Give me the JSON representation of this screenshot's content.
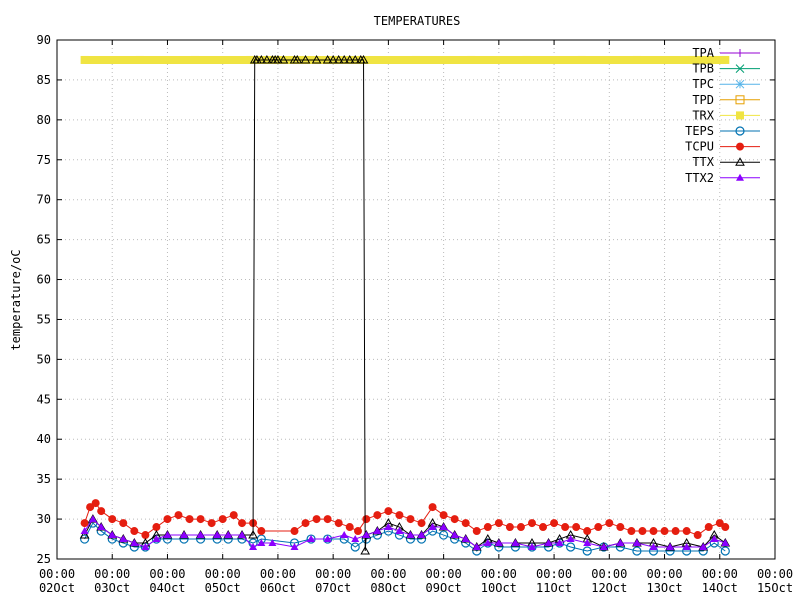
{
  "chart_data": {
    "type": "line",
    "title": "TEMPERATURES",
    "xlabel": "",
    "ylabel": "temperature/oC",
    "ylim": [
      25,
      90
    ],
    "yticks": [
      25,
      30,
      35,
      40,
      45,
      50,
      55,
      60,
      65,
      70,
      75,
      80,
      85,
      90
    ],
    "xlim": [
      2,
      15
    ],
    "xticks": [
      {
        "x": 2,
        "time": "00:00",
        "date": "02Oct"
      },
      {
        "x": 3,
        "time": "00:00",
        "date": "03Oct"
      },
      {
        "x": 4,
        "time": "00:00",
        "date": "04Oct"
      },
      {
        "x": 5,
        "time": "00:00",
        "date": "05Oct"
      },
      {
        "x": 6,
        "time": "00:00",
        "date": "06Oct"
      },
      {
        "x": 7,
        "time": "00:00",
        "date": "07Oct"
      },
      {
        "x": 8,
        "time": "00:00",
        "date": "08Oct"
      },
      {
        "x": 9,
        "time": "00:00",
        "date": "09Oct"
      },
      {
        "x": 10,
        "time": "00:00",
        "date": "10Oct"
      },
      {
        "x": 11,
        "time": "00:00",
        "date": "11Oct"
      },
      {
        "x": 12,
        "time": "00:00",
        "date": "12Oct"
      },
      {
        "x": 13,
        "time": "00:00",
        "date": "13Oct"
      },
      {
        "x": 14,
        "time": "00:00",
        "date": "14Oct"
      },
      {
        "x": 15,
        "time": "00:00",
        "date": "15Oct"
      }
    ],
    "grid": true,
    "legend_position": "top-right",
    "series": [
      {
        "name": "TPA",
        "color": "#9400d3",
        "marker": "plus",
        "x": [],
        "y": []
      },
      {
        "name": "TPB",
        "color": "#009e73",
        "marker": "cross",
        "x": [],
        "y": []
      },
      {
        "name": "TPC",
        "color": "#56b4e9",
        "marker": "star",
        "x": [],
        "y": []
      },
      {
        "name": "TPD",
        "color": "#e69f00",
        "marker": "square-open",
        "x": [],
        "y": []
      },
      {
        "name": "TRX",
        "color": "#f0e442",
        "marker": "square-filled",
        "x": [
          2.5,
          3.5,
          4.5,
          5.5,
          5.95,
          6.5,
          7.5,
          8.5,
          9.5,
          10.5,
          11.5,
          12.5,
          13.5,
          14.1
        ],
        "y": [
          87.5,
          87.5,
          87.5,
          87.5,
          87.5,
          87.5,
          87.5,
          87.5,
          87.5,
          87.5,
          87.5,
          87.5,
          87.5,
          87.5
        ]
      },
      {
        "name": "TEPS",
        "color": "#0072b2",
        "marker": "circle-open",
        "x": [
          2.5,
          2.65,
          2.8,
          3.0,
          3.2,
          3.4,
          3.6,
          3.8,
          4.0,
          4.3,
          4.6,
          4.9,
          5.1,
          5.35,
          5.55,
          5.7,
          6.3,
          6.6,
          6.9,
          7.2,
          7.4,
          7.6,
          7.8,
          8.0,
          8.2,
          8.4,
          8.6,
          8.8,
          9.0,
          9.2,
          9.4,
          9.6,
          9.8,
          10.0,
          10.3,
          10.6,
          10.9,
          11.1,
          11.3,
          11.6,
          11.9,
          12.2,
          12.5,
          12.8,
          13.1,
          13.4,
          13.7,
          13.9,
          14.1
        ],
        "y": [
          27.5,
          29.5,
          28.5,
          27.5,
          27,
          26.5,
          26.5,
          27.5,
          27.5,
          27.5,
          27.5,
          27.5,
          27.5,
          27.5,
          27,
          27.5,
          27,
          27.5,
          27.5,
          27.5,
          26.5,
          27.5,
          28,
          28.5,
          28,
          27.5,
          27.5,
          28.5,
          28,
          27.5,
          27,
          26,
          27,
          26.5,
          26.5,
          26.5,
          26.5,
          27,
          26.5,
          26,
          26.5,
          26.5,
          26,
          26,
          26,
          26,
          26,
          27,
          26
        ]
      },
      {
        "name": "TCPU",
        "color": "#e51e10",
        "marker": "circle-filled",
        "x": [
          2.5,
          2.6,
          2.7,
          2.8,
          3.0,
          3.2,
          3.4,
          3.6,
          3.8,
          4.0,
          4.2,
          4.4,
          4.6,
          4.8,
          5.0,
          5.2,
          5.35,
          5.55,
          5.7,
          6.3,
          6.5,
          6.7,
          6.9,
          7.1,
          7.3,
          7.45,
          7.6,
          7.8,
          8.0,
          8.2,
          8.4,
          8.6,
          8.8,
          9.0,
          9.2,
          9.4,
          9.6,
          9.8,
          10.0,
          10.2,
          10.4,
          10.6,
          10.8,
          11.0,
          11.2,
          11.4,
          11.6,
          11.8,
          12.0,
          12.2,
          12.4,
          12.6,
          12.8,
          13.0,
          13.2,
          13.4,
          13.6,
          13.8,
          14.0,
          14.1
        ],
        "y": [
          29.5,
          31.5,
          32,
          31,
          30,
          29.5,
          28.5,
          28,
          29,
          30,
          30.5,
          30,
          30,
          29.5,
          30,
          30.5,
          29.5,
          29.5,
          28.5,
          28.5,
          29.5,
          30,
          30,
          29.5,
          29,
          28.5,
          30,
          30.5,
          31,
          30.5,
          30,
          29.5,
          31.5,
          30.5,
          30,
          29.5,
          28.5,
          29,
          29.5,
          29,
          29,
          29.5,
          29,
          29.5,
          29,
          29,
          28.5,
          29,
          29.5,
          29,
          28.5,
          28.5,
          28.5,
          28.5,
          28.5,
          28.5,
          28,
          29,
          29.5,
          29
        ]
      },
      {
        "name": "TTX",
        "color": "#000000",
        "marker": "triangle-open",
        "x": [
          2.5,
          2.65,
          2.8,
          3.0,
          3.2,
          3.4,
          3.6,
          3.8,
          4.0,
          4.3,
          4.6,
          4.9,
          5.1,
          5.35,
          5.55,
          5.58,
          5.62,
          5.7,
          5.8,
          5.9,
          5.95,
          6.0,
          6.1,
          6.3,
          6.35,
          6.5,
          6.7,
          6.9,
          7.0,
          7.1,
          7.2,
          7.3,
          7.4,
          7.5,
          7.55,
          7.58,
          7.6,
          7.8,
          8.0,
          8.2,
          8.4,
          8.6,
          8.8,
          9.0,
          9.2,
          9.4,
          9.6,
          9.8,
          10.0,
          10.3,
          10.6,
          10.9,
          11.1,
          11.3,
          11.6,
          11.9,
          12.2,
          12.5,
          12.8,
          13.1,
          13.4,
          13.7,
          13.9,
          14.1
        ],
        "y": [
          28,
          30,
          29,
          28,
          27.5,
          27,
          27,
          28,
          28,
          28,
          28,
          28,
          28,
          28,
          28,
          87.5,
          87.5,
          87.5,
          87.5,
          87.5,
          87.5,
          87.5,
          87.5,
          87.5,
          87.5,
          87.5,
          87.5,
          87.5,
          87.5,
          87.5,
          87.5,
          87.5,
          87.5,
          87.5,
          87.5,
          26,
          28,
          28.5,
          29.5,
          29,
          28,
          28,
          29.5,
          29,
          28,
          27.5,
          26.5,
          27.5,
          27,
          27,
          27,
          27,
          27.5,
          28,
          27.5,
          26.5,
          27,
          27,
          27,
          26.5,
          27,
          26.5,
          28,
          27
        ]
      },
      {
        "name": "TTX2",
        "color": "#8b00ff",
        "marker": "triangle-filled",
        "x": [
          2.5,
          2.65,
          2.8,
          3.0,
          3.2,
          3.4,
          3.6,
          3.8,
          4.0,
          4.3,
          4.6,
          4.9,
          5.1,
          5.35,
          5.55,
          5.7,
          5.9,
          6.3,
          6.6,
          6.9,
          7.2,
          7.4,
          7.6,
          7.8,
          8.0,
          8.2,
          8.4,
          8.6,
          8.8,
          9.0,
          9.2,
          9.4,
          9.6,
          9.8,
          10.0,
          10.3,
          10.6,
          10.9,
          11.1,
          11.3,
          11.6,
          11.9,
          12.2,
          12.5,
          12.8,
          13.1,
          13.4,
          13.7,
          13.9,
          14.1
        ],
        "y": [
          28.5,
          30,
          29,
          28,
          27.5,
          27,
          26.5,
          27.5,
          28,
          28,
          28,
          28,
          28,
          28,
          26.5,
          27,
          27,
          26.5,
          27.5,
          27.5,
          28,
          27.5,
          28,
          28.5,
          29,
          28.5,
          28,
          28,
          29,
          29,
          28,
          27.5,
          26.5,
          27,
          27,
          27,
          26.5,
          27,
          27,
          27.5,
          27,
          26.5,
          27,
          27,
          26.5,
          26.5,
          26.5,
          26.5,
          27.5,
          27
        ]
      }
    ]
  }
}
